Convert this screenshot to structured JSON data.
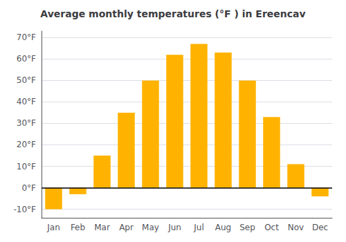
{
  "chart_data": {
    "type": "bar",
    "title": "Average monthly temperatures (°F ) in Ereencav",
    "categories": [
      "Jan",
      "Feb",
      "Mar",
      "Apr",
      "May",
      "Jun",
      "Jul",
      "Aug",
      "Sep",
      "Oct",
      "Nov",
      "Dec"
    ],
    "values": [
      -10,
      -3,
      15,
      35,
      50,
      62,
      67,
      63,
      50,
      33,
      11,
      -4
    ],
    "color": "#FFB300",
    "ylim": [
      -14,
      73
    ],
    "yticks": [
      {
        "value": -10,
        "label": "-10°F"
      },
      {
        "value": 0,
        "label": "0°F"
      },
      {
        "value": 10,
        "label": "10°F"
      },
      {
        "value": 20,
        "label": "20°F"
      },
      {
        "value": 30,
        "label": "30°F"
      },
      {
        "value": 40,
        "label": "40°F"
      },
      {
        "value": 50,
        "label": "50°F"
      },
      {
        "value": 60,
        "label": "60°F"
      },
      {
        "value": 70,
        "label": "70°F"
      }
    ],
    "grid": true
  }
}
